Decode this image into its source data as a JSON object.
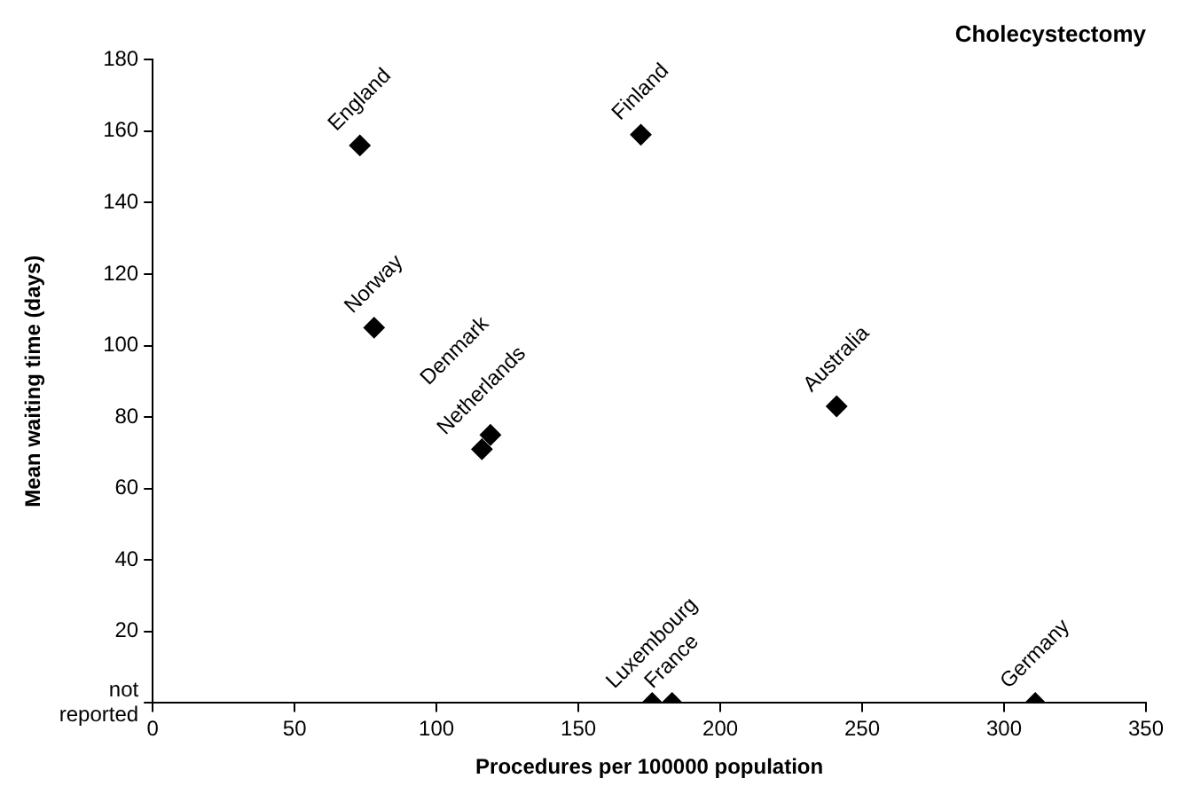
{
  "chart_data": {
    "type": "scatter",
    "title": "Cholecystectomy",
    "xlabel": "Procedures per 100000 population",
    "ylabel": "Mean waiting time (days)",
    "series": [
      {
        "color": "#000000",
        "x": [
          73,
          172,
          78,
          116,
          119,
          241,
          176,
          183,
          311
        ],
        "values": [
          156,
          159,
          105,
          71,
          75,
          83,
          0,
          0,
          0
        ]
      }
    ],
    "annotations": [
      {
        "text": "England",
        "x": 73,
        "y": 156
      },
      {
        "text": "Finland",
        "x": 172,
        "y": 159
      },
      {
        "text": "Norway",
        "x": 78,
        "y": 105
      },
      {
        "text": "Netherlands",
        "x": 116,
        "y": 71
      },
      {
        "text": "Denmark",
        "x": 119,
        "y": 75
      },
      {
        "text": "Australia",
        "x": 241,
        "y": 83
      },
      {
        "text": "Luxembourg",
        "x": 176,
        "y": 0
      },
      {
        "text": "France",
        "x": 183,
        "y": 0
      },
      {
        "text": "Germany",
        "x": 311,
        "y": 0
      }
    ],
    "xlim": [
      0,
      350
    ],
    "xticks": [
      0,
      50,
      100,
      150,
      200,
      250,
      300,
      350
    ],
    "ylim": [
      0,
      180
    ],
    "yticks": [
      {
        "value": 0,
        "label": "not reported"
      },
      20,
      40,
      60,
      80,
      100,
      120,
      140,
      160,
      180
    ],
    "grid": false,
    "legend": false,
    "marker": "diamond"
  }
}
